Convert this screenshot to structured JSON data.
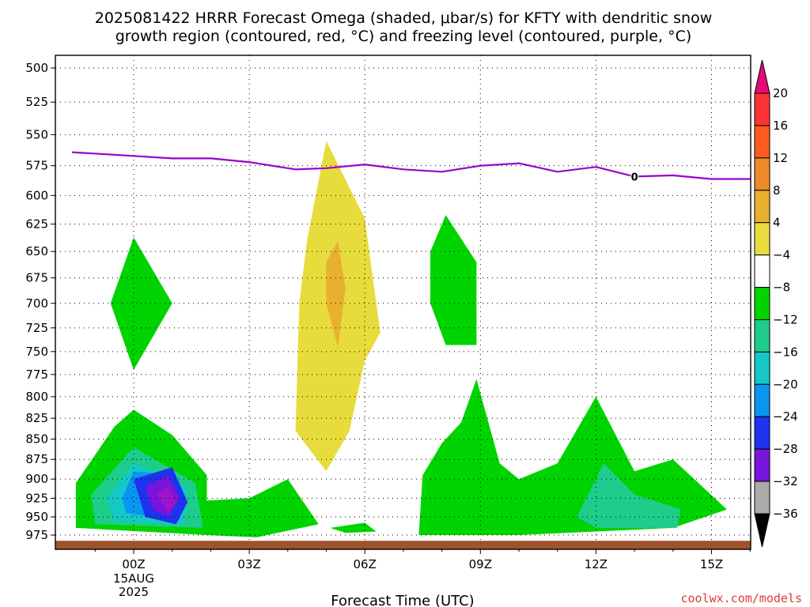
{
  "title_line1": "2025081422 HRRR Forecast Omega (shaded, μbar/s) for KFTY with dendritic snow",
  "title_line2": "growth region (contoured, red, °C) and freezing level (contoured, purple, °C)",
  "credit": "coolwx.com/models",
  "chart_data": {
    "type": "heatmap",
    "title": "2025081422 HRRR Forecast Omega (shaded, μbar/s) for KFTY with dendritic snow growth region (contoured, red, °C) and freezing level (contoured, purple, °C)",
    "xlabel": "Forecast Time (UTC)",
    "ylabel": "",
    "x_range_hours": [
      -1.6,
      16.5
    ],
    "y_range_hpa": [
      494,
      987
    ],
    "y_scale": "inverted pressure",
    "grid": true,
    "x_ticks": [
      {
        "hour": 0,
        "label": "00Z",
        "sub": [
          "15AUG",
          "2025"
        ]
      },
      {
        "hour": 3,
        "label": "03Z",
        "sub": []
      },
      {
        "hour": 6,
        "label": "06Z",
        "sub": []
      },
      {
        "hour": 9,
        "label": "09Z",
        "sub": []
      },
      {
        "hour": 12,
        "label": "12Z",
        "sub": []
      },
      {
        "hour": 15,
        "label": "15Z",
        "sub": []
      }
    ],
    "y_ticks": [
      500,
      525,
      550,
      575,
      600,
      625,
      650,
      675,
      700,
      725,
      750,
      775,
      800,
      825,
      850,
      875,
      900,
      925,
      950,
      975
    ],
    "colorbar": {
      "labels": [
        "20",
        "16",
        "12",
        "8",
        "4",
        "-4",
        "-8",
        "-12",
        "-16",
        "-20",
        "-24",
        "-28",
        "-32",
        "-36"
      ],
      "colors": [
        "#ff3333",
        "#ff5a1e",
        "#ee8a28",
        "#e8b030",
        "#e8dc3c",
        "#ffffff",
        "#00d400",
        "#1ecc8c",
        "#14c8c8",
        "#0a96f0",
        "#1e32f0",
        "#7814dc",
        "#a014c8",
        "#aaaaaa"
      ],
      "top_arrow_color": "#e8087a",
      "bottom_arrow_color": "#000000"
    },
    "freezing_level": {
      "label": "0",
      "label_at_hour": 13,
      "hours": [
        -1.6,
        0,
        1,
        2,
        3,
        4,
        4.2,
        5,
        6,
        7,
        8,
        9,
        10,
        11,
        12,
        13,
        14,
        15,
        16.5
      ],
      "hpa": [
        564,
        567,
        569,
        569,
        572,
        577,
        578,
        577,
        574,
        578,
        580,
        575,
        573,
        580,
        576,
        584,
        583,
        586,
        586
      ]
    },
    "terrain": {
      "color": "#a0522d",
      "top_hpa": 983
    },
    "omega_regions": [
      {
        "value": "-4 to -8",
        "color": "#00d400",
        "hours": [
          -0.3,
          0.3,
          0.3,
          -0.3
        ],
        "hpa_polygon": [
          [
            -0.6,
            700
          ],
          [
            0,
            637
          ],
          [
            1,
            700
          ],
          [
            0,
            770
          ]
        ]
      },
      {
        "value": "-4 to -8",
        "color": "#00d400",
        "hpa_polygon": [
          [
            -1.5,
            905
          ],
          [
            -0.5,
            835
          ],
          [
            0,
            815
          ],
          [
            1,
            845
          ],
          [
            1.9,
            895
          ],
          [
            1.9,
            975
          ],
          [
            -1.5,
            965
          ]
        ]
      },
      {
        "value": "-8 to -12",
        "color": "#1ecc8c",
        "hpa_polygon": [
          [
            -1.1,
            920
          ],
          [
            0,
            860
          ],
          [
            1.6,
            905
          ],
          [
            1.8,
            965
          ],
          [
            -1.0,
            960
          ]
        ]
      },
      {
        "value": "-12 to -16",
        "color": "#14c8c8",
        "hpa_polygon": [
          [
            -0.7,
            925
          ],
          [
            0,
            880
          ],
          [
            1.4,
            910
          ],
          [
            1.3,
            960
          ],
          [
            -0.5,
            955
          ]
        ]
      },
      {
        "value": "-16 to -20",
        "color": "#0a96f0",
        "hpa_polygon": [
          [
            -0.3,
            925
          ],
          [
            0,
            890
          ],
          [
            1.1,
            895
          ],
          [
            1.2,
            955
          ],
          [
            -0.2,
            945
          ]
        ]
      },
      {
        "value": "-20 to -24",
        "color": "#1e32f0",
        "hpa_polygon": [
          [
            0,
            900
          ],
          [
            1,
            885
          ],
          [
            1.4,
            930
          ],
          [
            1.1,
            960
          ],
          [
            0.3,
            950
          ]
        ]
      },
      {
        "value": "-24 to -28",
        "color": "#7814dc",
        "hpa_polygon": [
          [
            0.3,
            910
          ],
          [
            0.9,
            895
          ],
          [
            1.2,
            925
          ],
          [
            0.9,
            950
          ],
          [
            0.5,
            940
          ]
        ]
      },
      {
        "value": "-28 to -32",
        "color": "#a014c8",
        "hpa_polygon": [
          [
            0.6,
            920
          ],
          [
            0.9,
            910
          ],
          [
            1.1,
            930
          ],
          [
            0.9,
            945
          ]
        ]
      },
      {
        "value": "-4 to -8",
        "color": "#00d400",
        "hpa_polygon": [
          [
            1.9,
            928
          ],
          [
            3,
            925
          ],
          [
            4,
            900
          ],
          [
            4.8,
            960
          ],
          [
            3.2,
            978
          ],
          [
            1.9,
            975
          ]
        ]
      },
      {
        "value": "4 to 8",
        "color": "#e8dc3c",
        "hpa_polygon": [
          [
            4.5,
            640
          ],
          [
            5,
            555
          ],
          [
            6,
            620
          ],
          [
            6.4,
            730
          ],
          [
            6,
            760
          ],
          [
            5.6,
            840
          ],
          [
            5,
            890
          ],
          [
            4.2,
            840
          ],
          [
            4.3,
            700
          ]
        ]
      },
      {
        "value": "8 to 12",
        "color": "#e8b030",
        "hpa_polygon": [
          [
            5,
            660
          ],
          [
            5.3,
            640
          ],
          [
            5.5,
            685
          ],
          [
            5.3,
            745
          ],
          [
            5,
            700
          ]
        ]
      },
      {
        "value": "-4 to -8",
        "color": "#00d400",
        "hpa_polygon": [
          [
            5.1,
            965
          ],
          [
            6,
            958
          ],
          [
            6.3,
            970
          ],
          [
            5.5,
            972
          ]
        ]
      },
      {
        "value": "-4 to -8",
        "color": "#00d400",
        "hpa_polygon": [
          [
            7.7,
            650
          ],
          [
            8.1,
            617
          ],
          [
            8.9,
            660
          ],
          [
            8.9,
            743
          ],
          [
            8.1,
            743
          ],
          [
            7.7,
            700
          ]
        ]
      },
      {
        "value": "-4 to -8",
        "color": "#00d400",
        "hpa_polygon": [
          [
            7.5,
            895
          ],
          [
            8,
            855
          ],
          [
            8.5,
            830
          ],
          [
            8.9,
            780
          ],
          [
            9.5,
            880
          ],
          [
            10,
            900
          ],
          [
            11,
            880
          ],
          [
            12,
            800
          ],
          [
            13,
            890
          ],
          [
            14,
            875
          ],
          [
            15.4,
            940
          ],
          [
            14,
            965
          ],
          [
            12,
            970
          ],
          [
            10,
            975
          ],
          [
            7.4,
            975
          ]
        ]
      },
      {
        "value": "-8 to -12",
        "color": "#1ecc8c",
        "hpa_polygon": [
          [
            11.5,
            950
          ],
          [
            12,
            900
          ],
          [
            12.2,
            880
          ],
          [
            13,
            920
          ],
          [
            14.2,
            940
          ],
          [
            14.1,
            965
          ],
          [
            12,
            965
          ]
        ]
      }
    ]
  }
}
